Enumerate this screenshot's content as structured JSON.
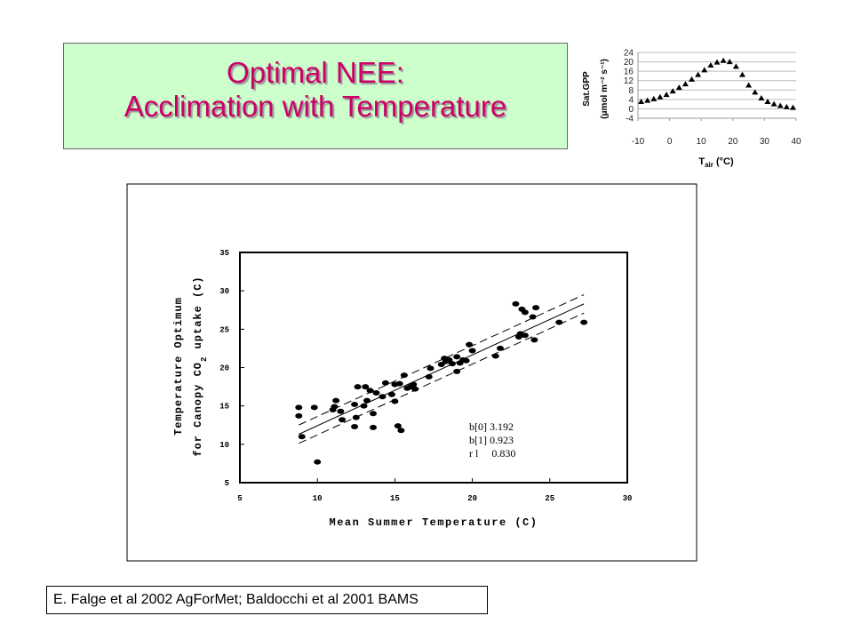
{
  "slide": {
    "title_line1": "Optimal NEE:",
    "title_line2": "Acclimation with Temperature",
    "citation": "E. Falge et al 2002 AgForMet; Baldocchi et al 2001 BAMS",
    "title_color": "#cc0066",
    "title_box_color": "#ccffcc"
  },
  "chart_data": [
    {
      "type": "scatter",
      "title": "",
      "xlabel": "Mean Summer Temperature (C)",
      "ylabel_line1": "Temperature Optimum",
      "ylabel_line2_pre": "for Canopy CO",
      "ylabel_line2_sub": "2",
      "ylabel_line2_post": " uptake (C)",
      "xlim": [
        5,
        30
      ],
      "ylim": [
        5,
        35
      ],
      "xticks": [
        "5",
        "10",
        "15",
        "20",
        "25",
        "30"
      ],
      "yticks": [
        "5",
        "10",
        "15",
        "20",
        "25",
        "30",
        "35"
      ],
      "annotation": [
        "b[0] 3.192",
        "b[1] 0.923",
        "r l     0.830"
      ],
      "regression": {
        "intercept": 3.192,
        "slope": 0.923,
        "x_range": [
          8.8,
          27.2
        ],
        "ci_offset": 1.2
      },
      "points": [
        [
          8.8,
          14.8
        ],
        [
          8.8,
          13.7
        ],
        [
          9.0,
          11.0
        ],
        [
          9.8,
          14.8
        ],
        [
          10.0,
          7.7
        ],
        [
          11.0,
          14.5
        ],
        [
          11.1,
          14.9
        ],
        [
          11.2,
          15.7
        ],
        [
          11.5,
          14.3
        ],
        [
          11.6,
          13.2
        ],
        [
          12.4,
          12.3
        ],
        [
          12.4,
          15.2
        ],
        [
          12.5,
          13.5
        ],
        [
          12.6,
          17.5
        ],
        [
          13.0,
          15.0
        ],
        [
          13.1,
          17.5
        ],
        [
          13.2,
          15.7
        ],
        [
          13.4,
          17.0
        ],
        [
          13.6,
          14.0
        ],
        [
          13.6,
          12.2
        ],
        [
          13.8,
          16.7
        ],
        [
          14.2,
          16.2
        ],
        [
          14.4,
          18.0
        ],
        [
          14.8,
          16.5
        ],
        [
          15.0,
          17.8
        ],
        [
          15.0,
          15.6
        ],
        [
          15.2,
          12.4
        ],
        [
          15.3,
          17.9
        ],
        [
          15.4,
          11.8
        ],
        [
          15.6,
          19.0
        ],
        [
          15.8,
          17.3
        ],
        [
          16.0,
          17.5
        ],
        [
          16.2,
          17.8
        ],
        [
          16.3,
          17.2
        ],
        [
          17.2,
          18.8
        ],
        [
          17.3,
          19.9
        ],
        [
          18.0,
          20.4
        ],
        [
          18.2,
          21.2
        ],
        [
          18.3,
          20.8
        ],
        [
          18.5,
          21.0
        ],
        [
          18.7,
          20.5
        ],
        [
          19.0,
          19.5
        ],
        [
          19.0,
          21.4
        ],
        [
          19.2,
          20.6
        ],
        [
          19.4,
          21.0
        ],
        [
          19.6,
          20.9
        ],
        [
          19.8,
          23.0
        ],
        [
          20.0,
          22.2
        ],
        [
          21.5,
          21.5
        ],
        [
          21.8,
          22.5
        ],
        [
          22.8,
          28.3
        ],
        [
          23.0,
          24.0
        ],
        [
          23.1,
          24.4
        ],
        [
          23.2,
          27.6
        ],
        [
          23.4,
          27.2
        ],
        [
          23.4,
          24.2
        ],
        [
          23.9,
          26.6
        ],
        [
          24.0,
          23.6
        ],
        [
          24.1,
          27.8
        ],
        [
          25.6,
          25.9
        ],
        [
          27.2,
          25.9
        ]
      ]
    },
    {
      "type": "scatter",
      "title": "",
      "marker": "triangle",
      "ylabel_line1": "Sat.GPP",
      "ylabel_line2": "(μmol m⁻² s⁻¹)",
      "xlabel_pre": "T",
      "xlabel_sub": "air",
      "xlabel_post": " (°C)",
      "xlim": [
        -10,
        40
      ],
      "ylim": [
        -4,
        24
      ],
      "xticks": [
        "-10",
        "0",
        "10",
        "20",
        "30",
        "40"
      ],
      "yticks": [
        "24",
        "20",
        "16",
        "12",
        "8",
        "4",
        "0",
        "-4"
      ],
      "gridlines_y": [
        -4,
        0,
        4,
        8,
        12,
        16,
        20,
        24
      ],
      "points": [
        [
          -9,
          3.0
        ],
        [
          -7,
          3.5
        ],
        [
          -5,
          4.2
        ],
        [
          -3,
          5.0
        ],
        [
          -1,
          6.0
        ],
        [
          1,
          7.5
        ],
        [
          3,
          9.0
        ],
        [
          5,
          10.5
        ],
        [
          7,
          12.5
        ],
        [
          9,
          14.5
        ],
        [
          11,
          16.5
        ],
        [
          13,
          18.5
        ],
        [
          15,
          19.8
        ],
        [
          17,
          20.5
        ],
        [
          19,
          20.0
        ],
        [
          21,
          18.0
        ],
        [
          23,
          14.5
        ],
        [
          25,
          10.0
        ],
        [
          27,
          7.0
        ],
        [
          29,
          4.5
        ],
        [
          31,
          3.0
        ],
        [
          33,
          2.0
        ],
        [
          35,
          1.3
        ],
        [
          37,
          0.8
        ],
        [
          39,
          0.5
        ]
      ]
    }
  ]
}
